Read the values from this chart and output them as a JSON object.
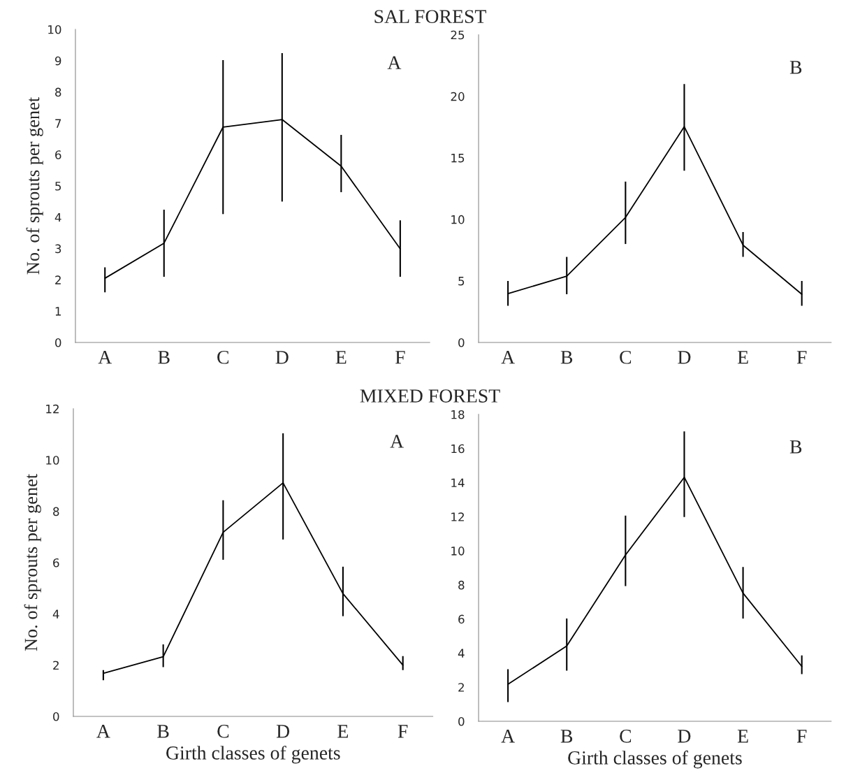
{
  "chart_data": [
    {
      "type": "line",
      "title": "SAL FOREST",
      "ylabel": "No. of sprouts per genet",
      "annotations": [
        "A"
      ],
      "categories": [
        "A",
        "B",
        "C",
        "D",
        "E",
        "F"
      ],
      "series": [
        {
          "color": "#000000",
          "values": [
            2.05,
            3.17,
            6.88,
            7.12,
            5.63,
            2.99
          ],
          "errors": [
            [
              1.6,
              2.4
            ],
            [
              2.1,
              4.24
            ],
            [
              4.1,
              9.02
            ],
            [
              4.5,
              9.24
            ],
            [
              4.8,
              6.63
            ],
            [
              2.1,
              3.9
            ]
          ]
        }
      ],
      "ylim": [
        0,
        10
      ],
      "yticks": [
        0,
        1,
        2,
        3,
        4,
        5,
        6,
        7,
        8,
        9,
        10
      ],
      "grid": false,
      "marker": "none",
      "line_style": "solid"
    },
    {
      "type": "line",
      "annotations": [
        "B"
      ],
      "categories": [
        "A",
        "B",
        "C",
        "D",
        "E",
        "F"
      ],
      "series": [
        {
          "color": "#000000",
          "values": [
            3.97,
            5.38,
            10.16,
            17.53,
            7.91,
            3.92
          ],
          "errors": [
            [
              2.98,
              5.0
            ],
            [
              3.92,
              6.95
            ],
            [
              8.0,
              13.07
            ],
            [
              13.95,
              21.0
            ],
            [
              6.95,
              8.97
            ],
            [
              2.98,
              5.0
            ]
          ]
        }
      ],
      "ylim": [
        0,
        25
      ],
      "yticks": [
        0,
        5,
        10,
        15,
        20,
        25
      ],
      "grid": false,
      "marker": "none",
      "line_style": "solid"
    },
    {
      "type": "line",
      "title": "MIXED FOREST",
      "xlabel": "Girth classes of genets",
      "ylabel": "No. of sprouts per genet",
      "annotations": [
        "A"
      ],
      "categories": [
        "A",
        "B",
        "C",
        "D",
        "E",
        "F"
      ],
      "series": [
        {
          "color": "#000000",
          "values": [
            1.68,
            2.33,
            7.18,
            9.11,
            4.79,
            2.0
          ],
          "errors": [
            [
              1.41,
              1.81
            ],
            [
              1.92,
              2.81
            ],
            [
              6.11,
              8.43
            ],
            [
              6.9,
              11.04
            ],
            [
              3.91,
              5.84
            ],
            [
              1.81,
              2.35
            ]
          ]
        }
      ],
      "ylim": [
        0,
        12
      ],
      "yticks": [
        0,
        2,
        4,
        6,
        8,
        10,
        12
      ],
      "grid": false,
      "marker": "none",
      "line_style": "solid"
    },
    {
      "type": "line",
      "xlabel": "Girth classes of genets",
      "annotations": [
        "B"
      ],
      "categories": [
        "A",
        "B",
        "C",
        "D",
        "E",
        "F"
      ],
      "series": [
        {
          "color": "#000000",
          "values": [
            2.17,
            4.42,
            9.76,
            14.31,
            7.52,
            3.22
          ],
          "errors": [
            [
              1.13,
              3.05
            ],
            [
              2.97,
              6.03
            ],
            [
              7.93,
              12.06
            ],
            [
              11.98,
              17.0
            ],
            [
              6.03,
              9.05
            ],
            [
              2.77,
              3.86
            ]
          ]
        }
      ],
      "ylim": [
        0,
        18
      ],
      "yticks": [
        0,
        2,
        4,
        6,
        8,
        10,
        12,
        14,
        16,
        18
      ],
      "grid": false,
      "marker": "none",
      "line_style": "solid"
    }
  ]
}
